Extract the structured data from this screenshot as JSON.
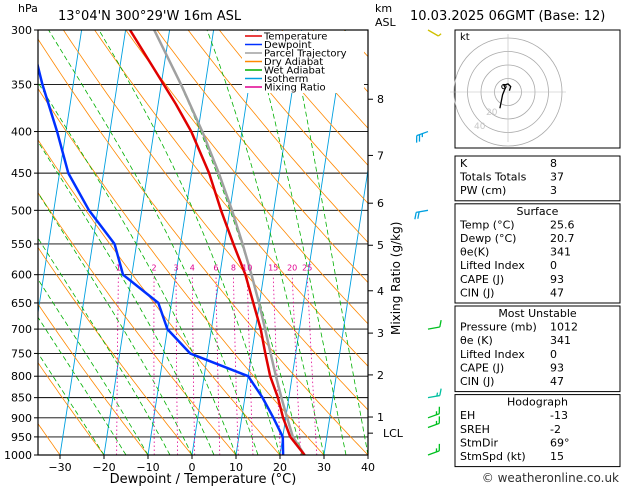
{
  "header": {
    "location": "13°04'N  300°29'W  16m  ASL",
    "datetime": "10.03.2025  06GMT  (Base: 12)",
    "pressure_unit": "hPa",
    "height_unit_km": "km",
    "height_unit_asl": "ASL"
  },
  "footer": {
    "copyright": "© weatheronline.co.uk"
  },
  "chart_data": {
    "type": "line",
    "xlabel": "Dewpoint / Temperature (°C)",
    "ylabel": "",
    "mixing_ratio_label": "Mixing Ratio (g/kg)",
    "xlim": [
      -35,
      40
    ],
    "ylim": [
      1000,
      300
    ],
    "y_scale": "log",
    "x_ticks": [
      -30,
      -20,
      -10,
      0,
      10,
      20,
      30,
      40
    ],
    "x_tick_labels": [
      "−30",
      "−20",
      "−10",
      "0",
      "10",
      "20",
      "30",
      "40"
    ],
    "pressure_levels": [
      300,
      350,
      400,
      450,
      500,
      550,
      600,
      650,
      700,
      750,
      800,
      850,
      900,
      950,
      1000
    ],
    "km_labels": [
      {
        "km": 8,
        "p": 365,
        "label": "8"
      },
      {
        "km": 7,
        "p": 428,
        "label": "7"
      },
      {
        "km": 6,
        "p": 490,
        "label": "6"
      },
      {
        "km": 5,
        "p": 552,
        "label": "5"
      },
      {
        "km": 4,
        "p": 628,
        "label": "4"
      },
      {
        "km": 3,
        "p": 708,
        "label": "3"
      },
      {
        "km": 2,
        "p": 797,
        "label": "2"
      },
      {
        "km": 1,
        "p": 898,
        "label": "1"
      }
    ],
    "lcl": {
      "p": 940,
      "label": "LCL"
    },
    "legend": [
      {
        "name": "Temperature",
        "color": "#e00000"
      },
      {
        "name": "Dewpoint",
        "color": "#0030ff"
      },
      {
        "name": "Parcel Trajectory",
        "color": "#a0a0a0"
      },
      {
        "name": "Dry Adiabat",
        "color": "#ff8800"
      },
      {
        "name": "Wet Adiabat",
        "color": "#00b000"
      },
      {
        "name": "Isotherm",
        "color": "#00a0e0"
      },
      {
        "name": "Mixing Ratio",
        "color": "#e00090"
      }
    ],
    "mixing_ratio_values": [
      1,
      2,
      3,
      4,
      6,
      8,
      10,
      15,
      20,
      25
    ],
    "mixing_ratio_labels": [
      "1",
      "2",
      "3",
      "4",
      "6",
      "8",
      "10",
      "15",
      "20",
      "25"
    ],
    "series": [
      {
        "name": "Temperature",
        "points": [
          [
            1000,
            25.6
          ],
          [
            950,
            21.7
          ],
          [
            900,
            19.4
          ],
          [
            850,
            17.5
          ],
          [
            800,
            15
          ],
          [
            750,
            13.1
          ],
          [
            700,
            11.2
          ],
          [
            650,
            8.6
          ],
          [
            600,
            5.8
          ],
          [
            550,
            2
          ],
          [
            500,
            -2
          ],
          [
            450,
            -6
          ],
          [
            400,
            -11.5
          ],
          [
            370,
            -16
          ],
          [
            300,
            -29
          ]
        ]
      },
      {
        "name": "Dewpoint",
        "points": [
          [
            1000,
            20.7
          ],
          [
            950,
            20
          ],
          [
            900,
            17.2
          ],
          [
            850,
            14
          ],
          [
            800,
            10
          ],
          [
            750,
            -4
          ],
          [
            700,
            -10
          ],
          [
            650,
            -13
          ],
          [
            600,
            -22
          ],
          [
            550,
            -25
          ],
          [
            500,
            -32
          ],
          [
            450,
            -38
          ],
          [
            400,
            -42
          ],
          [
            350,
            -47
          ],
          [
            300,
            -52
          ]
        ]
      },
      {
        "name": "Parcel Trajectory",
        "points": [
          [
            1000,
            25.6
          ],
          [
            950,
            22.3
          ],
          [
            900,
            20.3
          ],
          [
            850,
            18.3
          ],
          [
            800,
            16.3
          ],
          [
            750,
            14.3
          ],
          [
            700,
            12.2
          ],
          [
            650,
            9.9
          ],
          [
            600,
            7.2
          ],
          [
            550,
            4.1
          ],
          [
            500,
            0.5
          ],
          [
            450,
            -3.8
          ],
          [
            400,
            -9
          ],
          [
            350,
            -15.5
          ],
          [
            300,
            -23.5
          ]
        ]
      }
    ]
  },
  "hodograph": {
    "label": "kt",
    "rings": [
      10,
      20,
      30,
      40
    ],
    "points": [
      [
        1,
        1
      ],
      [
        2,
        4
      ],
      [
        0,
        6
      ],
      [
        -3,
        5
      ],
      [
        -2,
        3
      ],
      [
        -4,
        -2
      ],
      [
        -6,
        -12
      ]
    ],
    "storm": [
      -3,
      4
    ],
    "ghost_labels": [
      "20",
      "40"
    ]
  },
  "winds": [
    {
      "p": 300,
      "speed": 5,
      "dir": 120,
      "color": "#d0c000"
    },
    {
      "p": 400,
      "speed": 25,
      "dir": 250,
      "color": "#00a0e0"
    },
    {
      "p": 500,
      "speed": 20,
      "dir": 260,
      "color": "#00a0e0"
    },
    {
      "p": 700,
      "speed": 10,
      "dir": 80,
      "color": "#00c020"
    },
    {
      "p": 850,
      "speed": 15,
      "dir": 80,
      "color": "#00c0a0"
    },
    {
      "p": 900,
      "speed": 15,
      "dir": 70,
      "color": "#00c020"
    },
    {
      "p": 925,
      "speed": 15,
      "dir": 70,
      "color": "#00c020"
    },
    {
      "p": 1000,
      "speed": 15,
      "dir": 70,
      "color": "#00c020"
    }
  ],
  "indices": {
    "rows": [
      {
        "label": "K",
        "value": "8"
      },
      {
        "label": "Totals Totals",
        "value": "37"
      },
      {
        "label": "PW (cm)",
        "value": "3"
      }
    ]
  },
  "surface": {
    "title": "Surface",
    "rows": [
      {
        "label": "Temp (°C)",
        "value": "25.6"
      },
      {
        "label": "Dewp (°C)",
        "value": "20.7"
      },
      {
        "label": "θe(K)",
        "value": "341"
      },
      {
        "label": "Lifted Index",
        "value": "0"
      },
      {
        "label": "CAPE (J)",
        "value": "93"
      },
      {
        "label": "CIN (J)",
        "value": "47"
      }
    ]
  },
  "most_unstable": {
    "title": "Most Unstable",
    "rows": [
      {
        "label": "Pressure (mb)",
        "value": "1012"
      },
      {
        "label": "θe (K)",
        "value": "341"
      },
      {
        "label": "Lifted Index",
        "value": "0"
      },
      {
        "label": "CAPE (J)",
        "value": "93"
      },
      {
        "label": "CIN (J)",
        "value": "47"
      }
    ]
  },
  "hodograph_table": {
    "title": "Hodograph",
    "rows": [
      {
        "label": "EH",
        "value": "-13"
      },
      {
        "label": "SREH",
        "value": "-2"
      },
      {
        "label": "StmDir",
        "value": "69°"
      },
      {
        "label": "StmSpd (kt)",
        "value": "15"
      }
    ]
  }
}
